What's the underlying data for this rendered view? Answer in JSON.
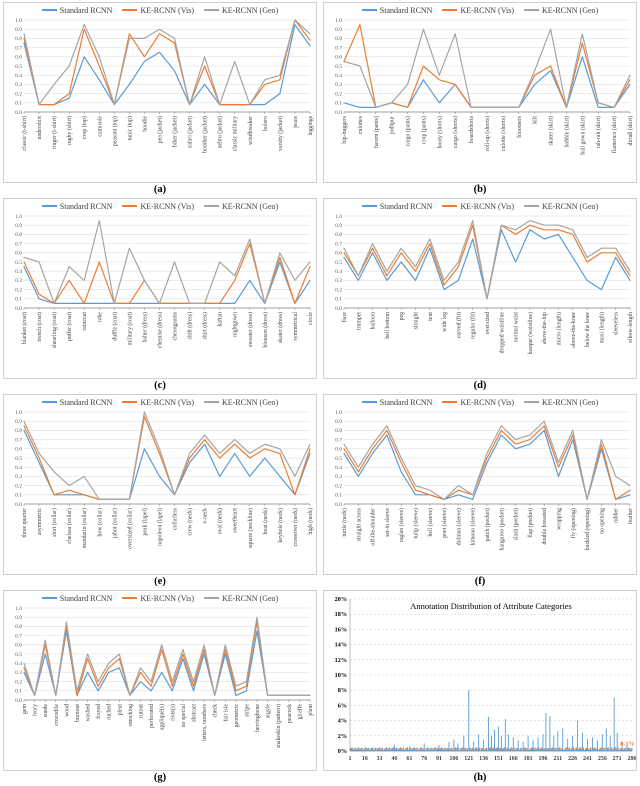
{
  "legend": {
    "items": [
      {
        "label": "Standard RCNN",
        "color": "#5B9BD5"
      },
      {
        "label": "KE-RCNN (Vis)",
        "color": "#ED7D31"
      },
      {
        "label": "KE-RCNN (Geo)",
        "color": "#A5A5A5"
      }
    ]
  },
  "line_axis": {
    "ticks": [
      "0.0",
      "0.1",
      "0.2",
      "0.3",
      "0.4",
      "0.5",
      "0.6",
      "0.7",
      "0.8",
      "0.9",
      "1.0"
    ],
    "ylim": [
      0,
      1
    ],
    "grid": true
  },
  "chart_data": [
    {
      "type": "line",
      "caption": "(a)",
      "categories": [
        "classic (t-shirt)",
        "undershirt",
        "ringer (t-shirt)",
        "rugby (shirt)",
        "crop (top)",
        "camisole",
        "peasant (top)",
        "tunic (top)",
        "hoodie",
        "pea (jacket)",
        "biker (jacket)",
        "safari (jacket)",
        "bomber (jacket)",
        "nehru (jacket)",
        "classic military",
        "windbreaker",
        "bolero",
        "varsity (jacket)",
        "jeans",
        "leggings"
      ],
      "series": [
        {
          "name": "Standard RCNN",
          "values": [
            0.75,
            0.08,
            0.08,
            0.15,
            0.6,
            0.35,
            0.08,
            0.3,
            0.55,
            0.65,
            0.45,
            0.08,
            0.3,
            0.08,
            0.08,
            0.08,
            0.08,
            0.2,
            0.95,
            0.72
          ]
        },
        {
          "name": "KE-RCNN (Vis)",
          "values": [
            0.8,
            0.08,
            0.08,
            0.2,
            0.9,
            0.5,
            0.08,
            0.85,
            0.6,
            0.85,
            0.75,
            0.08,
            0.5,
            0.08,
            0.08,
            0.08,
            0.3,
            0.35,
            1.0,
            0.78
          ]
        },
        {
          "name": "KE-RCNN (Geo)",
          "values": [
            0.85,
            0.08,
            0.3,
            0.5,
            0.95,
            0.6,
            0.08,
            0.8,
            0.8,
            0.9,
            0.8,
            0.08,
            0.6,
            0.08,
            0.55,
            0.08,
            0.35,
            0.4,
            1.0,
            0.85
          ]
        }
      ]
    },
    {
      "type": "line",
      "caption": "(b)",
      "categories": [
        "hip-huggers",
        "culottes",
        "harem (pants)",
        "jodhpur",
        "cargo (pants)",
        "crop (pants)",
        "booty (shorts)",
        "cargo (shorts)",
        "boardshorts",
        "roll-up (shorts)",
        "culotte (shorts)",
        "bloomers",
        "kilt",
        "skater (skirt)",
        "hobble (skirt)",
        "ball gown (skirt)",
        "rah-rah (skirt)",
        "flamenco (skirt)",
        "dirndl (skirt)"
      ],
      "series": [
        {
          "name": "Standard RCNN",
          "values": [
            0.1,
            0.05,
            0.05,
            0.1,
            0.05,
            0.35,
            0.1,
            0.3,
            0.05,
            0.05,
            0.05,
            0.05,
            0.3,
            0.45,
            0.05,
            0.6,
            0.05,
            0.05,
            0.3
          ]
        },
        {
          "name": "KE-RCNN (Vis)",
          "values": [
            0.55,
            0.95,
            0.05,
            0.1,
            0.05,
            0.5,
            0.35,
            0.3,
            0.05,
            0.05,
            0.05,
            0.05,
            0.4,
            0.5,
            0.05,
            0.75,
            0.1,
            0.05,
            0.35
          ]
        },
        {
          "name": "KE-RCNN (Geo)",
          "values": [
            0.55,
            0.5,
            0.05,
            0.1,
            0.3,
            0.9,
            0.4,
            0.85,
            0.05,
            0.05,
            0.05,
            0.05,
            0.45,
            0.9,
            0.05,
            0.85,
            0.1,
            0.05,
            0.4
          ]
        }
      ]
    },
    {
      "type": "line",
      "caption": "(c)",
      "categories": [
        "blanket (coat)",
        "trench (coat)",
        "shearling (coat)",
        "puffer (coat)",
        "raincoat",
        "robe",
        "duffle (coat)",
        "military (coat)",
        "halter (dress)",
        "chemise (dress)",
        "cheongsams",
        "shift (dress)",
        "shirt (dress)",
        "kaftan",
        "nightgown",
        "sweater (dress)",
        "blouson (dress)",
        "skater (dress)",
        "symmetrical",
        "circle"
      ],
      "series": [
        {
          "name": "Standard RCNN",
          "values": [
            0.45,
            0.1,
            0.05,
            0.05,
            0.05,
            0.05,
            0.05,
            0.05,
            0.05,
            0.05,
            0.05,
            0.05,
            0.05,
            0.05,
            0.05,
            0.3,
            0.05,
            0.5,
            0.05,
            0.3
          ]
        },
        {
          "name": "KE-RCNN (Vis)",
          "values": [
            0.5,
            0.15,
            0.05,
            0.3,
            0.05,
            0.5,
            0.05,
            0.05,
            0.3,
            0.05,
            0.05,
            0.05,
            0.05,
            0.05,
            0.3,
            0.7,
            0.05,
            0.55,
            0.05,
            0.45
          ]
        },
        {
          "name": "KE-RCNN (Geo)",
          "values": [
            0.55,
            0.5,
            0.05,
            0.45,
            0.3,
            0.95,
            0.05,
            0.65,
            0.3,
            0.05,
            0.5,
            0.05,
            0.05,
            0.5,
            0.35,
            0.75,
            0.05,
            0.6,
            0.3,
            0.5
          ]
        }
      ]
    },
    {
      "type": "line",
      "caption": "(d)",
      "categories": [
        "flare",
        "trumpet",
        "balloon",
        "bell bottom",
        "peg",
        "straight",
        "tent",
        "wide leg",
        "curved (fit)",
        "regular (fit)",
        "oversized",
        "dropped waistline",
        "normal waist",
        "basque (waistline)",
        "above-the-hip",
        "micro (length)",
        "above-the-knee",
        "below the knee",
        "maxi (length)",
        "sleeveless",
        "elbow-length"
      ],
      "series": [
        {
          "name": "Standard RCNN",
          "values": [
            0.55,
            0.3,
            0.6,
            0.3,
            0.5,
            0.3,
            0.65,
            0.2,
            0.3,
            0.75,
            0.1,
            0.85,
            0.5,
            0.85,
            0.75,
            0.8,
            0.55,
            0.3,
            0.2,
            0.55,
            0.3
          ]
        },
        {
          "name": "KE-RCNN (Vis)",
          "values": [
            0.6,
            0.35,
            0.65,
            0.35,
            0.6,
            0.4,
            0.7,
            0.25,
            0.45,
            0.9,
            0.1,
            0.9,
            0.8,
            0.9,
            0.85,
            0.85,
            0.8,
            0.5,
            0.6,
            0.6,
            0.35
          ]
        },
        {
          "name": "KE-RCNN (Geo)",
          "values": [
            0.65,
            0.35,
            0.7,
            0.4,
            0.65,
            0.45,
            0.75,
            0.3,
            0.5,
            0.95,
            0.1,
            0.9,
            0.85,
            0.95,
            0.9,
            0.9,
            0.85,
            0.55,
            0.65,
            0.65,
            0.4
          ]
        }
      ]
    },
    {
      "type": "line",
      "caption": "(e)",
      "categories": [
        "three quarter",
        "asymmetric",
        "shirt (collar)",
        "chelsea (collar)",
        "mandarin (collar)",
        "bow (collar)",
        "jabot (collar)",
        "oversized (collar)",
        "peak (lapel)",
        "napoleon (lapel)",
        "collarless",
        "crew (neck)",
        "v-neck",
        "oval (neck)",
        "sweetheart",
        "square (neckline)",
        "boat (neck)",
        "keyhole (neck)",
        "crossover (neck)",
        "high (neck)"
      ],
      "series": [
        {
          "name": "Standard RCNN",
          "values": [
            0.8,
            0.45,
            0.1,
            0.1,
            0.1,
            0.05,
            0.05,
            0.05,
            0.6,
            0.3,
            0.1,
            0.45,
            0.65,
            0.3,
            0.55,
            0.3,
            0.5,
            0.3,
            0.1,
            0.55
          ]
        },
        {
          "name": "KE-RCNN (Vis)",
          "values": [
            0.85,
            0.5,
            0.1,
            0.15,
            0.1,
            0.05,
            0.05,
            0.05,
            0.95,
            0.55,
            0.1,
            0.5,
            0.7,
            0.5,
            0.65,
            0.5,
            0.6,
            0.55,
            0.1,
            0.6
          ]
        },
        {
          "name": "KE-RCNN (Geo)",
          "values": [
            0.9,
            0.55,
            0.35,
            0.2,
            0.3,
            0.05,
            0.05,
            0.05,
            1.0,
            0.6,
            0.1,
            0.55,
            0.75,
            0.55,
            0.7,
            0.55,
            0.65,
            0.6,
            0.3,
            0.65
          ]
        }
      ]
    },
    {
      "type": "line",
      "caption": "(f)",
      "categories": [
        "turtle (neck)",
        "straight across",
        "off-the-shoulder",
        "set-in sleeve",
        "raglan (sleeve)",
        "tulip (sleeve)",
        "bell (sleeve)",
        "poet (sleeve)",
        "dolman (sleeve)",
        "kimono (sleeve)",
        "patch (pocket)",
        "kangaroo (pocket)",
        "slash (pocket)",
        "flap (pocket)",
        "double breasted",
        "wrapping",
        "fly (opening)",
        "buckled (opening)",
        "no opening",
        "rubber",
        "feather"
      ],
      "series": [
        {
          "name": "Standard RCNN",
          "values": [
            0.55,
            0.3,
            0.55,
            0.75,
            0.35,
            0.1,
            0.1,
            0.05,
            0.1,
            0.05,
            0.45,
            0.75,
            0.6,
            0.65,
            0.8,
            0.3,
            0.7,
            0.05,
            0.6,
            0.05,
            0.1
          ]
        },
        {
          "name": "KE-RCNN (Vis)",
          "values": [
            0.6,
            0.35,
            0.6,
            0.8,
            0.45,
            0.15,
            0.1,
            0.05,
            0.15,
            0.1,
            0.5,
            0.8,
            0.65,
            0.7,
            0.85,
            0.4,
            0.75,
            0.05,
            0.65,
            0.05,
            0.15
          ]
        },
        {
          "name": "KE-RCNN (Geo)",
          "values": [
            0.65,
            0.4,
            0.65,
            0.85,
            0.5,
            0.2,
            0.15,
            0.05,
            0.2,
            0.1,
            0.55,
            0.85,
            0.7,
            0.75,
            0.9,
            0.45,
            0.8,
            0.05,
            0.7,
            0.3,
            0.2
          ]
        }
      ]
    },
    {
      "type": "line",
      "caption": "(g)",
      "categories": [
        "gem",
        "ivory",
        "suede",
        "crocodile",
        "wood",
        "burnout",
        "washed",
        "frayed",
        "ruched",
        "pleat",
        "smocking",
        "cutout",
        "perforated",
        "appliqué(s)",
        "rivet(s)",
        "no special",
        "abstract",
        "letters, numbers",
        "check",
        "fair isle",
        "geometric",
        "stripe",
        "herringbone",
        "argyle",
        "snakeskin (pattern)",
        "peacock",
        "giraffe",
        "plant"
      ],
      "series": [
        {
          "name": "Standard RCNN",
          "values": [
            0.3,
            0.05,
            0.5,
            0.05,
            0.75,
            0.05,
            0.3,
            0.1,
            0.3,
            0.35,
            0.05,
            0.2,
            0.1,
            0.3,
            0.1,
            0.45,
            0.1,
            0.5,
            0.05,
            0.5,
            0.05,
            0.1,
            0.75,
            0.05,
            0.05,
            0.05,
            0.05,
            0.05
          ]
        },
        {
          "name": "KE-RCNN (Vis)",
          "values": [
            0.35,
            0.05,
            0.6,
            0.05,
            0.8,
            0.05,
            0.45,
            0.15,
            0.35,
            0.45,
            0.05,
            0.3,
            0.15,
            0.55,
            0.15,
            0.5,
            0.15,
            0.55,
            0.05,
            0.55,
            0.1,
            0.15,
            0.85,
            0.05,
            0.05,
            0.05,
            0.05,
            0.05
          ]
        },
        {
          "name": "KE-RCNN (Geo)",
          "values": [
            0.4,
            0.05,
            0.65,
            0.05,
            0.85,
            0.1,
            0.5,
            0.2,
            0.4,
            0.5,
            0.05,
            0.35,
            0.2,
            0.6,
            0.2,
            0.55,
            0.2,
            0.6,
            0.05,
            0.6,
            0.15,
            0.2,
            0.9,
            0.05,
            0.05,
            0.05,
            0.05,
            0.05
          ]
        }
      ]
    },
    {
      "type": "bar",
      "caption": "(h)",
      "title": "Annotation Distribution of Attribute Categories",
      "n_categories": 286,
      "x_ticks": [
        1,
        16,
        31,
        46,
        61,
        76,
        91,
        106,
        121,
        136,
        151,
        166,
        181,
        196,
        211,
        226,
        241,
        256,
        271,
        286
      ],
      "y_ticks": [
        "0%",
        "2%",
        "4%",
        "6%",
        "8%",
        "10%",
        "12%",
        "14%",
        "16%",
        "18%",
        "20%"
      ],
      "ylim": [
        0,
        20
      ],
      "bar_color": "#5B9BD5",
      "baseline_percent": 0.3,
      "reference_line": {
        "value": 0.3,
        "label": "0.3%",
        "color": "#ED7D31",
        "style": "dashed"
      },
      "spikes": [
        [
          46,
          0.8
        ],
        [
          61,
          0.6
        ],
        [
          76,
          1.0
        ],
        [
          91,
          0.8
        ],
        [
          101,
          1.2
        ],
        [
          106,
          1.5
        ],
        [
          110,
          1.0
        ],
        [
          116,
          2.0
        ],
        [
          121,
          8.0
        ],
        [
          126,
          1.2
        ],
        [
          131,
          2.2
        ],
        [
          136,
          1.5
        ],
        [
          141,
          4.5
        ],
        [
          144,
          2.0
        ],
        [
          147,
          2.8
        ],
        [
          151,
          3.2
        ],
        [
          154,
          2.0
        ],
        [
          158,
          4.2
        ],
        [
          161,
          2.2
        ],
        [
          166,
          1.8
        ],
        [
          171,
          1.4
        ],
        [
          176,
          1.2
        ],
        [
          181,
          2.0
        ],
        [
          186,
          1.5
        ],
        [
          191,
          1.8
        ],
        [
          196,
          2.2
        ],
        [
          199,
          5.0
        ],
        [
          203,
          4.6
        ],
        [
          207,
          2.0
        ],
        [
          211,
          2.6
        ],
        [
          216,
          3.0
        ],
        [
          221,
          1.6
        ],
        [
          226,
          2.0
        ],
        [
          231,
          4.0
        ],
        [
          236,
          2.4
        ],
        [
          241,
          1.6
        ],
        [
          246,
          1.8
        ],
        [
          251,
          1.4
        ],
        [
          256,
          2.2
        ],
        [
          260,
          3.0
        ],
        [
          264,
          2.0
        ],
        [
          268,
          7.0
        ],
        [
          271,
          2.4
        ],
        [
          276,
          1.2
        ],
        [
          281,
          0.8
        ]
      ]
    }
  ]
}
